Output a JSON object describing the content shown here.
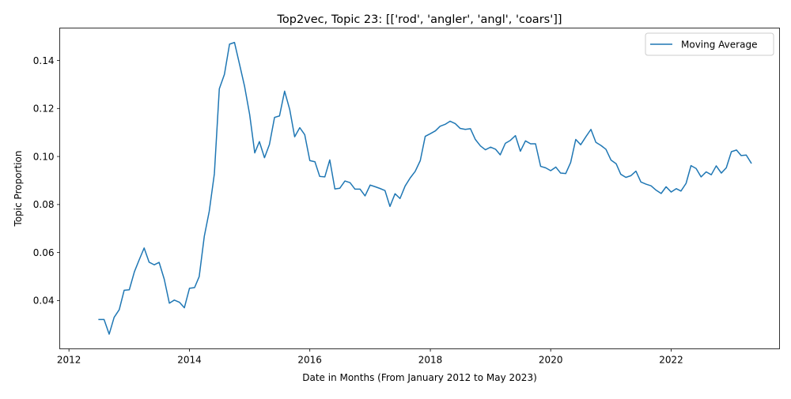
{
  "chart_data": {
    "type": "line",
    "title": "Top2vec, Topic 23: [['rod', 'angler', 'angl', 'coars']]",
    "xlabel": "Date in Months (From January 2012 to May 2023)",
    "ylabel": "Topic Proportion",
    "xlim": [
      "2011-11-06",
      "2023-10-20"
    ],
    "ylim": [
      0.0199,
      0.1535
    ],
    "xticks": [
      "2012",
      "2014",
      "2016",
      "2018",
      "2020",
      "2022"
    ],
    "xtick_dates": [
      "2012-01-01",
      "2014-01-01",
      "2016-01-01",
      "2018-01-01",
      "2020-01-01",
      "2022-01-01"
    ],
    "yticks": [
      "0.04",
      "0.06",
      "0.08",
      "0.10",
      "0.12",
      "0.14"
    ],
    "ytick_values": [
      0.04,
      0.06,
      0.08,
      0.1,
      0.12,
      0.14
    ],
    "legend_position": "upper right",
    "grid": false,
    "series": [
      {
        "name": "Moving Average",
        "color": "#1f77b4",
        "points": [
          [
            "2012-07",
            0.0321
          ],
          [
            "2012-08",
            0.0321
          ],
          [
            "2012-09",
            0.026
          ],
          [
            "2012-10",
            0.033
          ],
          [
            "2012-11",
            0.0362
          ],
          [
            "2012-12",
            0.0443
          ],
          [
            "2013-01",
            0.0445
          ],
          [
            "2013-02",
            0.052
          ],
          [
            "2013-03",
            0.0568
          ],
          [
            "2013-04",
            0.0619
          ],
          [
            "2013-05",
            0.056
          ],
          [
            "2013-06",
            0.0549
          ],
          [
            "2013-07",
            0.0559
          ],
          [
            "2013-08",
            0.0489
          ],
          [
            "2013-09",
            0.0389
          ],
          [
            "2013-10",
            0.0402
          ],
          [
            "2013-11",
            0.0393
          ],
          [
            "2013-12",
            0.037
          ],
          [
            "2014-01",
            0.0451
          ],
          [
            "2014-02",
            0.0454
          ],
          [
            "2014-03",
            0.05
          ],
          [
            "2014-04",
            0.0668
          ],
          [
            "2014-05",
            0.0772
          ],
          [
            "2014-06",
            0.0928
          ],
          [
            "2014-07",
            0.1282
          ],
          [
            "2014-08",
            0.1342
          ],
          [
            "2014-09",
            0.1468
          ],
          [
            "2014-10",
            0.1475
          ],
          [
            "2014-11",
            0.1383
          ],
          [
            "2014-12",
            0.1293
          ],
          [
            "2015-01",
            0.1175
          ],
          [
            "2015-02",
            0.1015
          ],
          [
            "2015-03",
            0.1062
          ],
          [
            "2015-04",
            0.0995
          ],
          [
            "2015-05",
            0.105
          ],
          [
            "2015-06",
            0.1163
          ],
          [
            "2015-07",
            0.1169
          ],
          [
            "2015-08",
            0.1272
          ],
          [
            "2015-09",
            0.1196
          ],
          [
            "2015-10",
            0.1082
          ],
          [
            "2015-11",
            0.112
          ],
          [
            "2015-12",
            0.1091
          ],
          [
            "2016-01",
            0.0983
          ],
          [
            "2016-02",
            0.0978
          ],
          [
            "2016-03",
            0.0917
          ],
          [
            "2016-04",
            0.0915
          ],
          [
            "2016-05",
            0.0986
          ],
          [
            "2016-06",
            0.0865
          ],
          [
            "2016-07",
            0.0868
          ],
          [
            "2016-08",
            0.0898
          ],
          [
            "2016-09",
            0.0891
          ],
          [
            "2016-10",
            0.0864
          ],
          [
            "2016-11",
            0.0864
          ],
          [
            "2016-12",
            0.0836
          ],
          [
            "2017-01",
            0.0881
          ],
          [
            "2017-02",
            0.0874
          ],
          [
            "2017-03",
            0.0867
          ],
          [
            "2017-04",
            0.0858
          ],
          [
            "2017-05",
            0.0792
          ],
          [
            "2017-06",
            0.0845
          ],
          [
            "2017-07",
            0.0825
          ],
          [
            "2017-08",
            0.0877
          ],
          [
            "2017-09",
            0.0911
          ],
          [
            "2017-10",
            0.0938
          ],
          [
            "2017-11",
            0.0983
          ],
          [
            "2017-12",
            0.1084
          ],
          [
            "2018-01",
            0.1095
          ],
          [
            "2018-02",
            0.1107
          ],
          [
            "2018-03",
            0.1126
          ],
          [
            "2018-04",
            0.1134
          ],
          [
            "2018-05",
            0.1147
          ],
          [
            "2018-06",
            0.1137
          ],
          [
            "2018-07",
            0.1117
          ],
          [
            "2018-08",
            0.1113
          ],
          [
            "2018-09",
            0.1116
          ],
          [
            "2018-10",
            0.1071
          ],
          [
            "2018-11",
            0.1044
          ],
          [
            "2018-12",
            0.1028
          ],
          [
            "2019-01",
            0.1039
          ],
          [
            "2019-02",
            0.103
          ],
          [
            "2019-03",
            0.1007
          ],
          [
            "2019-04",
            0.1055
          ],
          [
            "2019-05",
            0.1067
          ],
          [
            "2019-06",
            0.1087
          ],
          [
            "2019-07",
            0.1022
          ],
          [
            "2019-08",
            0.1065
          ],
          [
            "2019-09",
            0.1053
          ],
          [
            "2019-10",
            0.1053
          ],
          [
            "2019-11",
            0.0959
          ],
          [
            "2019-12",
            0.0953
          ],
          [
            "2020-01",
            0.0941
          ],
          [
            "2020-02",
            0.0956
          ],
          [
            "2020-03",
            0.0931
          ],
          [
            "2020-04",
            0.0929
          ],
          [
            "2020-05",
            0.0975
          ],
          [
            "2020-06",
            0.1071
          ],
          [
            "2020-07",
            0.1049
          ],
          [
            "2020-08",
            0.1082
          ],
          [
            "2020-09",
            0.1113
          ],
          [
            "2020-10",
            0.1059
          ],
          [
            "2020-11",
            0.1046
          ],
          [
            "2020-12",
            0.103
          ],
          [
            "2021-01",
            0.0985
          ],
          [
            "2021-02",
            0.097
          ],
          [
            "2021-03",
            0.0926
          ],
          [
            "2021-04",
            0.0913
          ],
          [
            "2021-05",
            0.092
          ],
          [
            "2021-06",
            0.0939
          ],
          [
            "2021-07",
            0.0894
          ],
          [
            "2021-08",
            0.0885
          ],
          [
            "2021-09",
            0.0878
          ],
          [
            "2021-10",
            0.086
          ],
          [
            "2021-11",
            0.0846
          ],
          [
            "2021-12",
            0.0874
          ],
          [
            "2022-01",
            0.0852
          ],
          [
            "2022-02",
            0.0866
          ],
          [
            "2022-03",
            0.0856
          ],
          [
            "2022-04",
            0.0888
          ],
          [
            "2022-05",
            0.0962
          ],
          [
            "2022-06",
            0.095
          ],
          [
            "2022-07",
            0.0915
          ],
          [
            "2022-08",
            0.0936
          ],
          [
            "2022-09",
            0.0924
          ],
          [
            "2022-10",
            0.0961
          ],
          [
            "2022-11",
            0.0931
          ],
          [
            "2022-12",
            0.0953
          ],
          [
            "2023-01",
            0.102
          ],
          [
            "2023-02",
            0.1027
          ],
          [
            "2023-03",
            0.1004
          ],
          [
            "2023-04",
            0.1006
          ],
          [
            "2023-05",
            0.0973
          ]
        ]
      }
    ]
  }
}
